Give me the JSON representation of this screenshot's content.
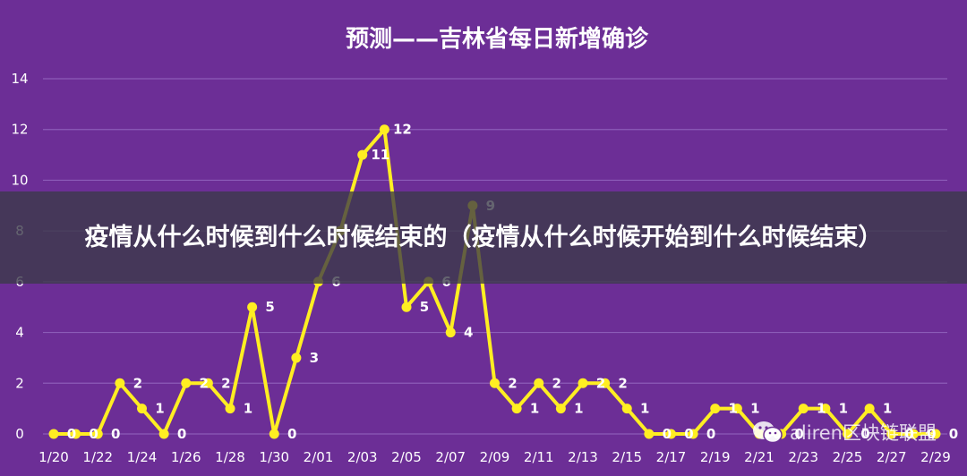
{
  "page": {
    "banner_text": "疫情从什么时候到什么时候结束的（疫情从什么时候开始到什么时候结束）",
    "watermark_text": "aliren区块链联盟",
    "watermark_icon": "wechat-icon"
  },
  "colors": {
    "background": "#6c2e96",
    "line": "#ffee22",
    "grid": "#8c5cb8"
  },
  "chart_data": {
    "type": "line",
    "title": "预测——吉林省每日新增确诊",
    "xlabel": "",
    "ylabel": "",
    "ylim": [
      0,
      14
    ],
    "yticks": [
      0,
      2,
      4,
      6,
      8,
      10,
      12,
      14
    ],
    "grid": true,
    "legend": "none",
    "x_tick_labels": [
      "1/20",
      "1/22",
      "1/24",
      "1/26",
      "1/28",
      "1/30",
      "2/01",
      "2/03",
      "2/05",
      "2/07",
      "2/09",
      "2/11",
      "2/13",
      "2/15",
      "2/17",
      "2/19",
      "2/21",
      "2/23",
      "2/25",
      "2/27",
      "2/29"
    ],
    "x": [
      "1/20",
      "1/21",
      "1/22",
      "1/23",
      "1/24",
      "1/25",
      "1/26",
      "1/27",
      "1/28",
      "1/29",
      "1/30",
      "1/31",
      "2/01",
      "2/02",
      "2/03",
      "2/04",
      "2/05",
      "2/06",
      "2/07",
      "2/08",
      "2/09",
      "2/10",
      "2/11",
      "2/12",
      "2/13",
      "2/14",
      "2/15",
      "2/16",
      "2/17",
      "2/18",
      "2/19",
      "2/20",
      "2/21",
      "2/22",
      "2/23",
      "2/24",
      "2/25",
      "2/26",
      "2/27",
      "2/28",
      "2/29"
    ],
    "series": [
      {
        "values": [
          0,
          0,
          0,
          2,
          1,
          0,
          2,
          2,
          1,
          5,
          0,
          3,
          6,
          8,
          11,
          12,
          5,
          6,
          4,
          9,
          2,
          1,
          2,
          1,
          2,
          2,
          1,
          0,
          0,
          0,
          1,
          1,
          0,
          0,
          1,
          1,
          0,
          1,
          0,
          0,
          0
        ]
      }
    ]
  }
}
